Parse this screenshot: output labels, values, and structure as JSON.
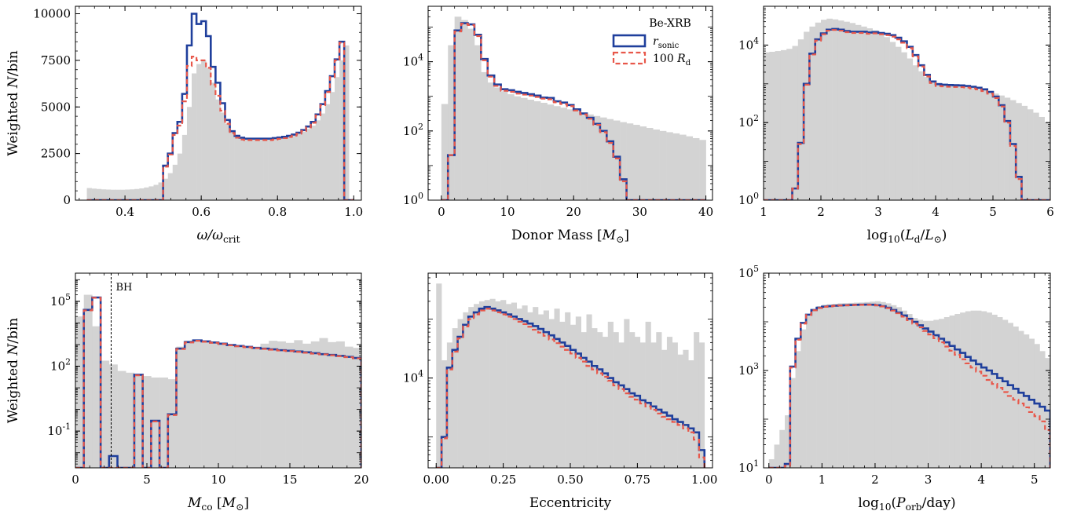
{
  "figure": {
    "legend": {
      "title": "Be-XRB",
      "entries": [
        {
          "label": "r_sonic",
          "color": "#1f3f9c",
          "style": "solid"
        },
        {
          "label": "100 R_d",
          "color": "#e8574a",
          "style": "dashed"
        }
      ]
    },
    "colors": {
      "background_hist": "#d3d3d3",
      "rsonic": "#1f3f9c",
      "rd": "#e8574a"
    }
  },
  "chart_data": [
    {
      "type": "histogram-step",
      "xlabel": "ω/ωcrit",
      "ylabel": "Weighted N/bin",
      "yscale": "linear",
      "xlim": [
        0.27,
        1.02
      ],
      "ylim": [
        0,
        10400
      ],
      "xticks": [
        0.4,
        0.6,
        0.8,
        1.0
      ],
      "xtick_labels": [
        "0.4",
        "0.6",
        "0.8",
        "1.0"
      ],
      "yticks": [
        0,
        2500,
        5000,
        7500,
        10000
      ],
      "ytick_labels": [
        "0",
        "2500",
        "5000",
        "7500",
        "10000"
      ],
      "bin_edges_range": [
        0.3,
        1.0
      ],
      "bin_count": 56,
      "gray": [
        650,
        620,
        600,
        580,
        570,
        560,
        560,
        560,
        570,
        580,
        600,
        630,
        680,
        740,
        820,
        950,
        1150,
        1450,
        1900,
        2500,
        3500,
        5000,
        6800,
        7300,
        7500,
        7100,
        6300,
        5400,
        4700,
        4100,
        3700,
        3500,
        3380,
        3320,
        3300,
        3300,
        3300,
        3300,
        3300,
        3320,
        3340,
        3380,
        3420,
        3480,
        3560,
        3680,
        3820,
        4000,
        4280,
        4650,
        5150,
        5800,
        6600,
        7500,
        8300,
        50
      ],
      "series": [
        {
          "name": "r_sonic",
          "values": [
            0,
            0,
            0,
            0,
            0,
            0,
            0,
            0,
            0,
            0,
            0,
            0,
            0,
            0,
            0,
            0,
            1850,
            2500,
            3600,
            4200,
            5700,
            8300,
            10000,
            9450,
            9600,
            8800,
            7150,
            6300,
            5200,
            4300,
            3700,
            3450,
            3350,
            3300,
            3300,
            3300,
            3300,
            3300,
            3300,
            3330,
            3360,
            3400,
            3450,
            3520,
            3620,
            3760,
            3950,
            4200,
            4600,
            5150,
            5850,
            6650,
            7550,
            8500,
            0,
            0
          ]
        },
        {
          "name": "100 R_d",
          "values": [
            0,
            0,
            0,
            0,
            0,
            0,
            0,
            0,
            0,
            0,
            0,
            0,
            0,
            0,
            0,
            0,
            1800,
            2450,
            3500,
            4000,
            5300,
            7200,
            7700,
            7500,
            7500,
            7100,
            6200,
            5600,
            4800,
            4100,
            3600,
            3350,
            3250,
            3220,
            3220,
            3220,
            3220,
            3220,
            3220,
            3250,
            3290,
            3330,
            3390,
            3460,
            3570,
            3710,
            3900,
            4150,
            4550,
            5100,
            5800,
            6600,
            7500,
            8450,
            0,
            0
          ]
        }
      ]
    },
    {
      "type": "histogram-step",
      "xlabel": "Donor Mass [M⊙]",
      "ylabel": "",
      "yscale": "log",
      "xlim": [
        -2,
        41
      ],
      "ylim": [
        1,
        400000
      ],
      "xticks": [
        0,
        10,
        20,
        30,
        40
      ],
      "xtick_labels": [
        "0",
        "10",
        "20",
        "30",
        "40"
      ],
      "yticks": [
        1,
        100,
        10000
      ],
      "ytick_labels": [
        "10^0",
        "10^2",
        "10^4"
      ],
      "bin_edges_range": [
        0,
        40
      ],
      "bin_count": 40,
      "gray": [
        600,
        30000,
        200000,
        160000,
        90000,
        30000,
        5000,
        2500,
        1800,
        1400,
        1150,
        1000,
        900,
        800,
        720,
        650,
        580,
        520,
        470,
        420,
        380,
        340,
        300,
        270,
        245,
        220,
        200,
        180,
        165,
        150,
        135,
        122,
        110,
        100,
        92,
        85,
        78,
        70,
        62,
        55
      ],
      "series": [
        {
          "name": "r_sonic",
          "values": [
            0,
            20,
            80000,
            130000,
            120000,
            60000,
            12000,
            4000,
            2200,
            1600,
            1500,
            1350,
            1250,
            1150,
            1050,
            920,
            900,
            720,
            660,
            560,
            420,
            320,
            240,
            160,
            100,
            50,
            18,
            4,
            1,
            0,
            0,
            0,
            0,
            0,
            0,
            0,
            0,
            0,
            0,
            0
          ]
        },
        {
          "name": "100 R_d",
          "values": [
            0,
            20,
            75000,
            125000,
            115000,
            55000,
            11000,
            3700,
            2000,
            1450,
            1350,
            1200,
            1120,
            1050,
            960,
            860,
            820,
            670,
            600,
            520,
            390,
            300,
            225,
            150,
            92,
            45,
            16,
            3.5,
            0.9,
            0,
            0,
            0,
            0,
            0,
            0,
            0,
            0,
            0,
            0,
            0
          ]
        }
      ]
    },
    {
      "type": "histogram-step",
      "xlabel": "log10(Ld/L⊙)",
      "ylabel": "",
      "yscale": "log",
      "xlim": [
        1.0,
        6.0
      ],
      "ylim": [
        1,
        100000
      ],
      "xticks": [
        1,
        2,
        3,
        4,
        5,
        6
      ],
      "xtick_labels": [
        "1",
        "2",
        "3",
        "4",
        "5",
        "6"
      ],
      "yticks": [
        1,
        100,
        10000
      ],
      "ytick_labels": [
        "10^0",
        "10^2",
        "10^4"
      ],
      "bin_edges_range": [
        1.0,
        6.0
      ],
      "bin_count": 50,
      "gray": [
        6500,
        6700,
        7000,
        7400,
        8000,
        9500,
        14000,
        22000,
        30000,
        38000,
        45000,
        48000,
        46000,
        43000,
        40000,
        37000,
        33000,
        30000,
        27000,
        24000,
        20000,
        16000,
        12000,
        9000,
        6500,
        4500,
        3000,
        2100,
        1500,
        1200,
        1050,
        1000,
        950,
        900,
        870,
        830,
        780,
        730,
        680,
        620,
        560,
        500,
        440,
        380,
        320,
        270,
        220,
        180,
        140,
        100
      ],
      "series": [
        {
          "name": "r_sonic",
          "values": [
            0,
            0,
            0,
            0,
            0,
            2,
            30,
            1000,
            6000,
            14000,
            20000,
            25000,
            26000,
            25000,
            23000,
            22000,
            22000,
            22000,
            21000,
            21500,
            20500,
            19500,
            18000,
            15500,
            12500,
            9000,
            5500,
            3000,
            1700,
            1150,
            980,
            950,
            930,
            920,
            910,
            880,
            840,
            790,
            720,
            620,
            470,
            280,
            110,
            28,
            4,
            0,
            0,
            0,
            0,
            0
          ]
        },
        {
          "name": "100 R_d",
          "values": [
            0,
            0,
            0,
            0,
            0,
            2,
            28,
            950,
            5700,
            13000,
            19000,
            23500,
            24500,
            23500,
            21500,
            20500,
            20500,
            20500,
            19500,
            20000,
            19000,
            18000,
            16500,
            14000,
            11500,
            8300,
            5100,
            2800,
            1550,
            1050,
            880,
            860,
            840,
            830,
            820,
            800,
            760,
            720,
            650,
            560,
            430,
            260,
            100,
            25,
            3.5,
            0,
            0,
            0,
            0,
            0
          ]
        }
      ]
    },
    {
      "type": "histogram-step",
      "xlabel": "Mco [M⊙]",
      "ylabel": "Weighted N/bin",
      "yscale": "log",
      "xlim": [
        0,
        20
      ],
      "ylim": [
        0.002,
        2000000
      ],
      "xticks": [
        0,
        5,
        10,
        15,
        20
      ],
      "xtick_labels": [
        "0",
        "5",
        "10",
        "15",
        "20"
      ],
      "yticks": [
        0.1,
        100,
        100000
      ],
      "ytick_labels": [
        "10^-1",
        "10^2",
        "10^5"
      ],
      "annotations": [
        {
          "text": "BH",
          "x": 2.5
        }
      ],
      "bin_edges_range": [
        0,
        20
      ],
      "bin_count": 34,
      "gray": [
        20000,
        200000,
        7000,
        180,
        120,
        60,
        50,
        40,
        35,
        30,
        30,
        25,
        800,
        1500,
        1700,
        1400,
        1200,
        1000,
        900,
        800,
        700,
        750,
        1100,
        1500,
        1400,
        1200,
        1600,
        1100,
        1400,
        2000,
        1300,
        1400,
        800,
        700
      ],
      "series": [
        {
          "name": "r_sonic",
          "values": [
            0,
            40000,
            150000,
            0,
            0.007,
            0,
            0,
            40,
            0,
            0.3,
            0,
            0.6,
            650,
            1300,
            1550,
            1400,
            1250,
            1100,
            950,
            860,
            780,
            700,
            650,
            600,
            550,
            520,
            480,
            440,
            400,
            360,
            330,
            300,
            270,
            240
          ]
        },
        {
          "name": "100 R_d",
          "values": [
            0,
            38000,
            145000,
            0,
            0,
            0,
            0,
            38,
            0,
            0.28,
            0,
            0.55,
            620,
            1250,
            1500,
            1350,
            1200,
            1060,
            920,
            830,
            750,
            680,
            630,
            580,
            530,
            500,
            460,
            420,
            380,
            350,
            320,
            290,
            260,
            230
          ]
        }
      ]
    },
    {
      "type": "histogram-step",
      "xlabel": "Eccentricity",
      "ylabel": "",
      "yscale": "log",
      "xlim": [
        -0.03,
        1.03
      ],
      "ylim": [
        300,
        600000
      ],
      "xticks": [
        0.0,
        0.25,
        0.5,
        0.75,
        1.0
      ],
      "xtick_labels": [
        "0.00",
        "0.25",
        "0.50",
        "0.75",
        "1.00"
      ],
      "yticks": [
        10000
      ],
      "ytick_labels": [
        "10^4"
      ],
      "bin_edges_range": [
        0,
        1
      ],
      "bin_count": 50,
      "gray": [
        400000,
        20000,
        40000,
        70000,
        100000,
        130000,
        160000,
        180000,
        200000,
        210000,
        220000,
        200000,
        210000,
        180000,
        190000,
        150000,
        170000,
        130000,
        160000,
        120000,
        140000,
        100000,
        150000,
        90000,
        130000,
        80000,
        110000,
        60000,
        120000,
        70000,
        60000,
        50000,
        90000,
        60000,
        40000,
        100000,
        60000,
        50000,
        40000,
        90000,
        40000,
        60000,
        30000,
        50000,
        40000,
        25000,
        30000,
        20000,
        60000,
        40000
      ],
      "series": [
        {
          "name": "r_sonic",
          "values": [
            0,
            1000,
            15000,
            30000,
            50000,
            80000,
            110000,
            130000,
            150000,
            160000,
            150000,
            140000,
            130000,
            120000,
            110000,
            100000,
            92000,
            84000,
            76000,
            68000,
            60000,
            53000,
            46000,
            40000,
            35000,
            30000,
            26000,
            22000,
            19000,
            16000,
            14000,
            12000,
            10000,
            8500,
            7500,
            6500,
            5500,
            5000,
            4200,
            3800,
            3300,
            2900,
            2600,
            2300,
            2000,
            1800,
            1600,
            1400,
            1200,
            600
          ]
        },
        {
          "name": "100 R_d",
          "values": [
            0,
            950,
            14000,
            28000,
            47000,
            75000,
            100000,
            120000,
            140000,
            150000,
            140000,
            130000,
            120000,
            110000,
            100000,
            90000,
            82000,
            74000,
            66000,
            59000,
            52000,
            45000,
            39000,
            34000,
            30000,
            26000,
            22000,
            19000,
            16000,
            14000,
            12000,
            10500,
            9000,
            7500,
            6500,
            5500,
            4800,
            4300,
            3700,
            3300,
            2900,
            2500,
            2200,
            2000,
            1800,
            1600,
            1400,
            1200,
            900,
            450
          ]
        }
      ]
    },
    {
      "type": "histogram-step",
      "xlabel": "log10(Porb/day)",
      "ylabel": "",
      "yscale": "log",
      "xlim": [
        -0.1,
        5.3
      ],
      "ylim": [
        10,
        100000
      ],
      "xticks": [
        0,
        1,
        2,
        3,
        4,
        5
      ],
      "xtick_labels": [
        "0",
        "1",
        "2",
        "3",
        "4",
        "5"
      ],
      "yticks": [
        10,
        1000,
        100000
      ],
      "ytick_labels": [
        "10^1",
        "10^3",
        "10^5"
      ],
      "bin_edges_range": [
        0,
        5.3
      ],
      "bin_count": 53,
      "gray": [
        15,
        30,
        60,
        120,
        700,
        2500,
        7000,
        13000,
        18000,
        21000,
        22500,
        23000,
        23500,
        24000,
        24200,
        24500,
        24800,
        25000,
        25500,
        26000,
        26500,
        25500,
        24000,
        22000,
        20000,
        17000,
        14500,
        12000,
        11000,
        10500,
        10500,
        11000,
        11500,
        12500,
        13500,
        14500,
        15500,
        16500,
        17000,
        17000,
        16500,
        15500,
        14000,
        12500,
        11000,
        9500,
        8000,
        6500,
        5500,
        4500,
        3500,
        2500,
        1800
      ],
      "series": [
        {
          "name": "r_sonic",
          "values": [
            0,
            0,
            0,
            12,
            1200,
            4500,
            9500,
            14000,
            17500,
            19500,
            20500,
            21000,
            21500,
            21800,
            22000,
            22200,
            22400,
            22500,
            22600,
            22500,
            22000,
            21000,
            19500,
            17500,
            15500,
            13500,
            11500,
            10000,
            8500,
            7300,
            6300,
            5300,
            4500,
            3800,
            3200,
            2700,
            2300,
            1900,
            1600,
            1350,
            1150,
            1000,
            850,
            700,
            600,
            500,
            420,
            350,
            300,
            250,
            210,
            180,
            150
          ]
        },
        {
          "name": "100 R_d",
          "values": [
            0,
            0,
            0,
            11,
            1150,
            4300,
            9200,
            13800,
            17300,
            19300,
            20300,
            20800,
            21300,
            21600,
            21800,
            22000,
            22200,
            22300,
            22400,
            22300,
            21800,
            20700,
            19100,
            17000,
            15000,
            12800,
            10800,
            9200,
            7700,
            6500,
            5500,
            4600,
            3800,
            3100,
            2550,
            2100,
            1700,
            1400,
            1150,
            950,
            780,
            640,
            530,
            440,
            360,
            300,
            250,
            210,
            175,
            140,
            115,
            90,
            60
          ]
        }
      ]
    }
  ]
}
